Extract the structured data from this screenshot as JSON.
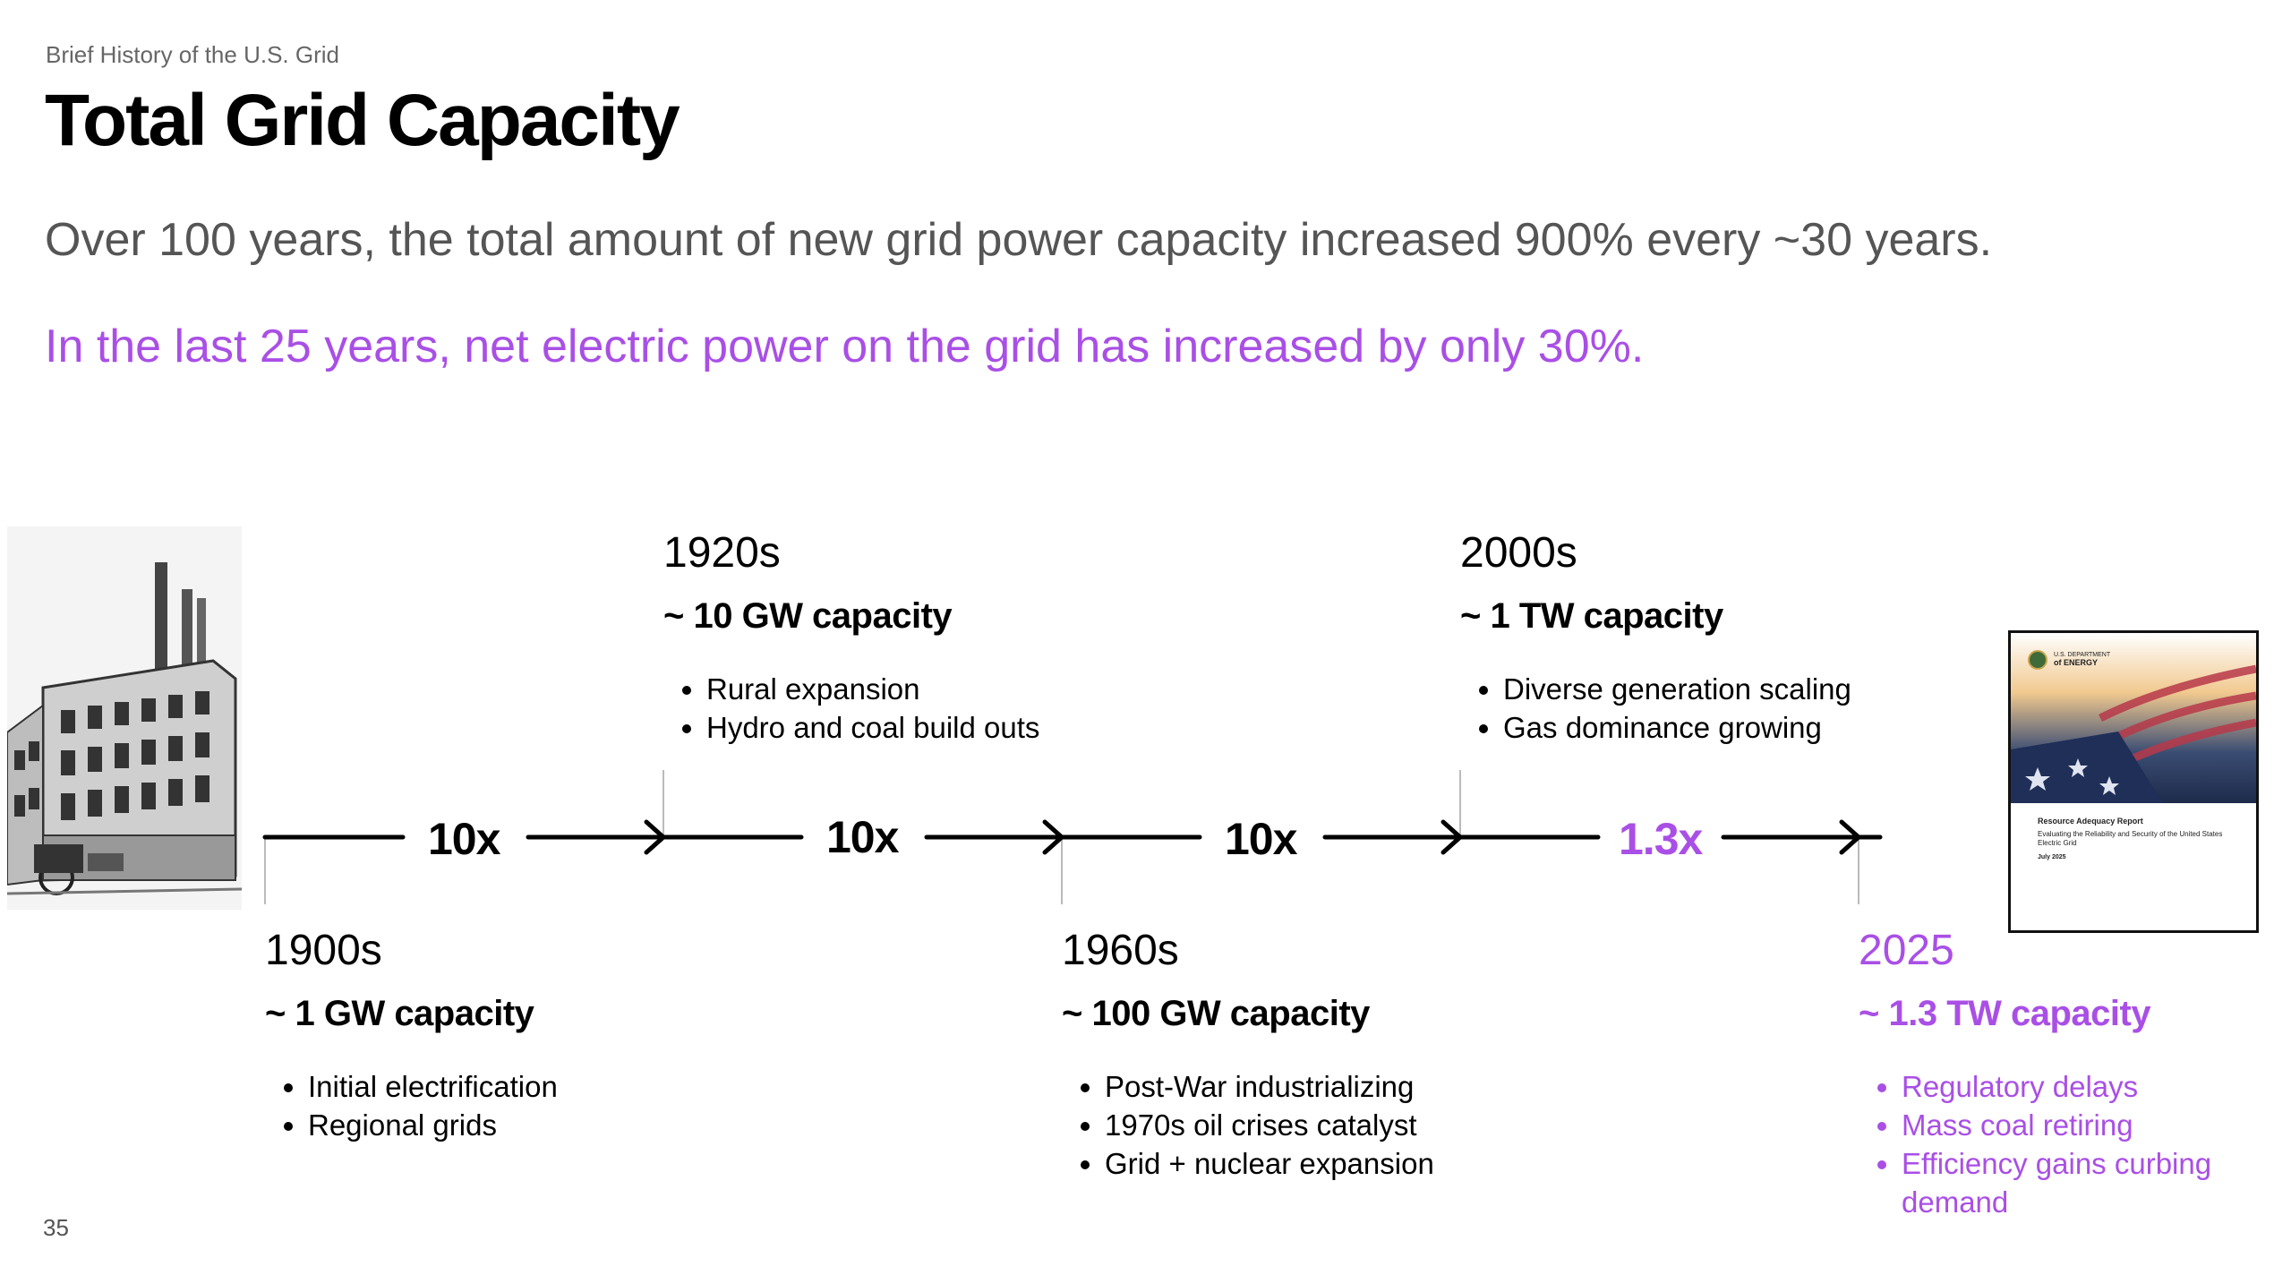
{
  "breadcrumb": "Brief History of the U.S. Grid",
  "title": "Total Grid Capacity",
  "subtitle": "Over 100 years, the total amount of new grid power capacity increased 900% every ~30 years.",
  "highlight": "In the last 25 years, net electric power on the grid has increased by only 30%.",
  "colors": {
    "accent": "#a94fe6",
    "text": "#000000",
    "muted": "#555555"
  },
  "eras": [
    {
      "decade": "1900s",
      "capacity": "~ 1 GW capacity",
      "bullets": [
        "Initial electrification",
        "Regional grids"
      ]
    },
    {
      "decade": "1920s",
      "capacity": "~ 10 GW capacity",
      "bullets": [
        "Rural expansion",
        "Hydro and coal build outs"
      ]
    },
    {
      "decade": "1960s",
      "capacity": "~ 100 GW capacity",
      "bullets": [
        "Post-War industrializing",
        "1970s oil crises catalyst",
        "Grid + nuclear expansion"
      ]
    },
    {
      "decade": "2000s",
      "capacity": "~ 1 TW capacity",
      "bullets": [
        "Diverse generation scaling",
        "Gas dominance growing"
      ]
    },
    {
      "decade": "2025",
      "capacity": "~ 1.3 TW capacity",
      "bullets": [
        "Regulatory delays",
        "Mass coal retiring",
        "Efficiency gains curbing demand"
      ]
    }
  ],
  "multipliers": [
    "10x",
    "10x",
    "10x",
    "1.3x"
  ],
  "report": {
    "agency_line1": "U.S. DEPARTMENT",
    "agency_line2": "of ENERGY",
    "title": "Resource Adequacy Report",
    "subtitle": "Evaluating the Reliability and Security of the United States Electric Grid",
    "date": "July 2025"
  },
  "photo_icon": "historic-power-station-photo",
  "page_number": "35"
}
